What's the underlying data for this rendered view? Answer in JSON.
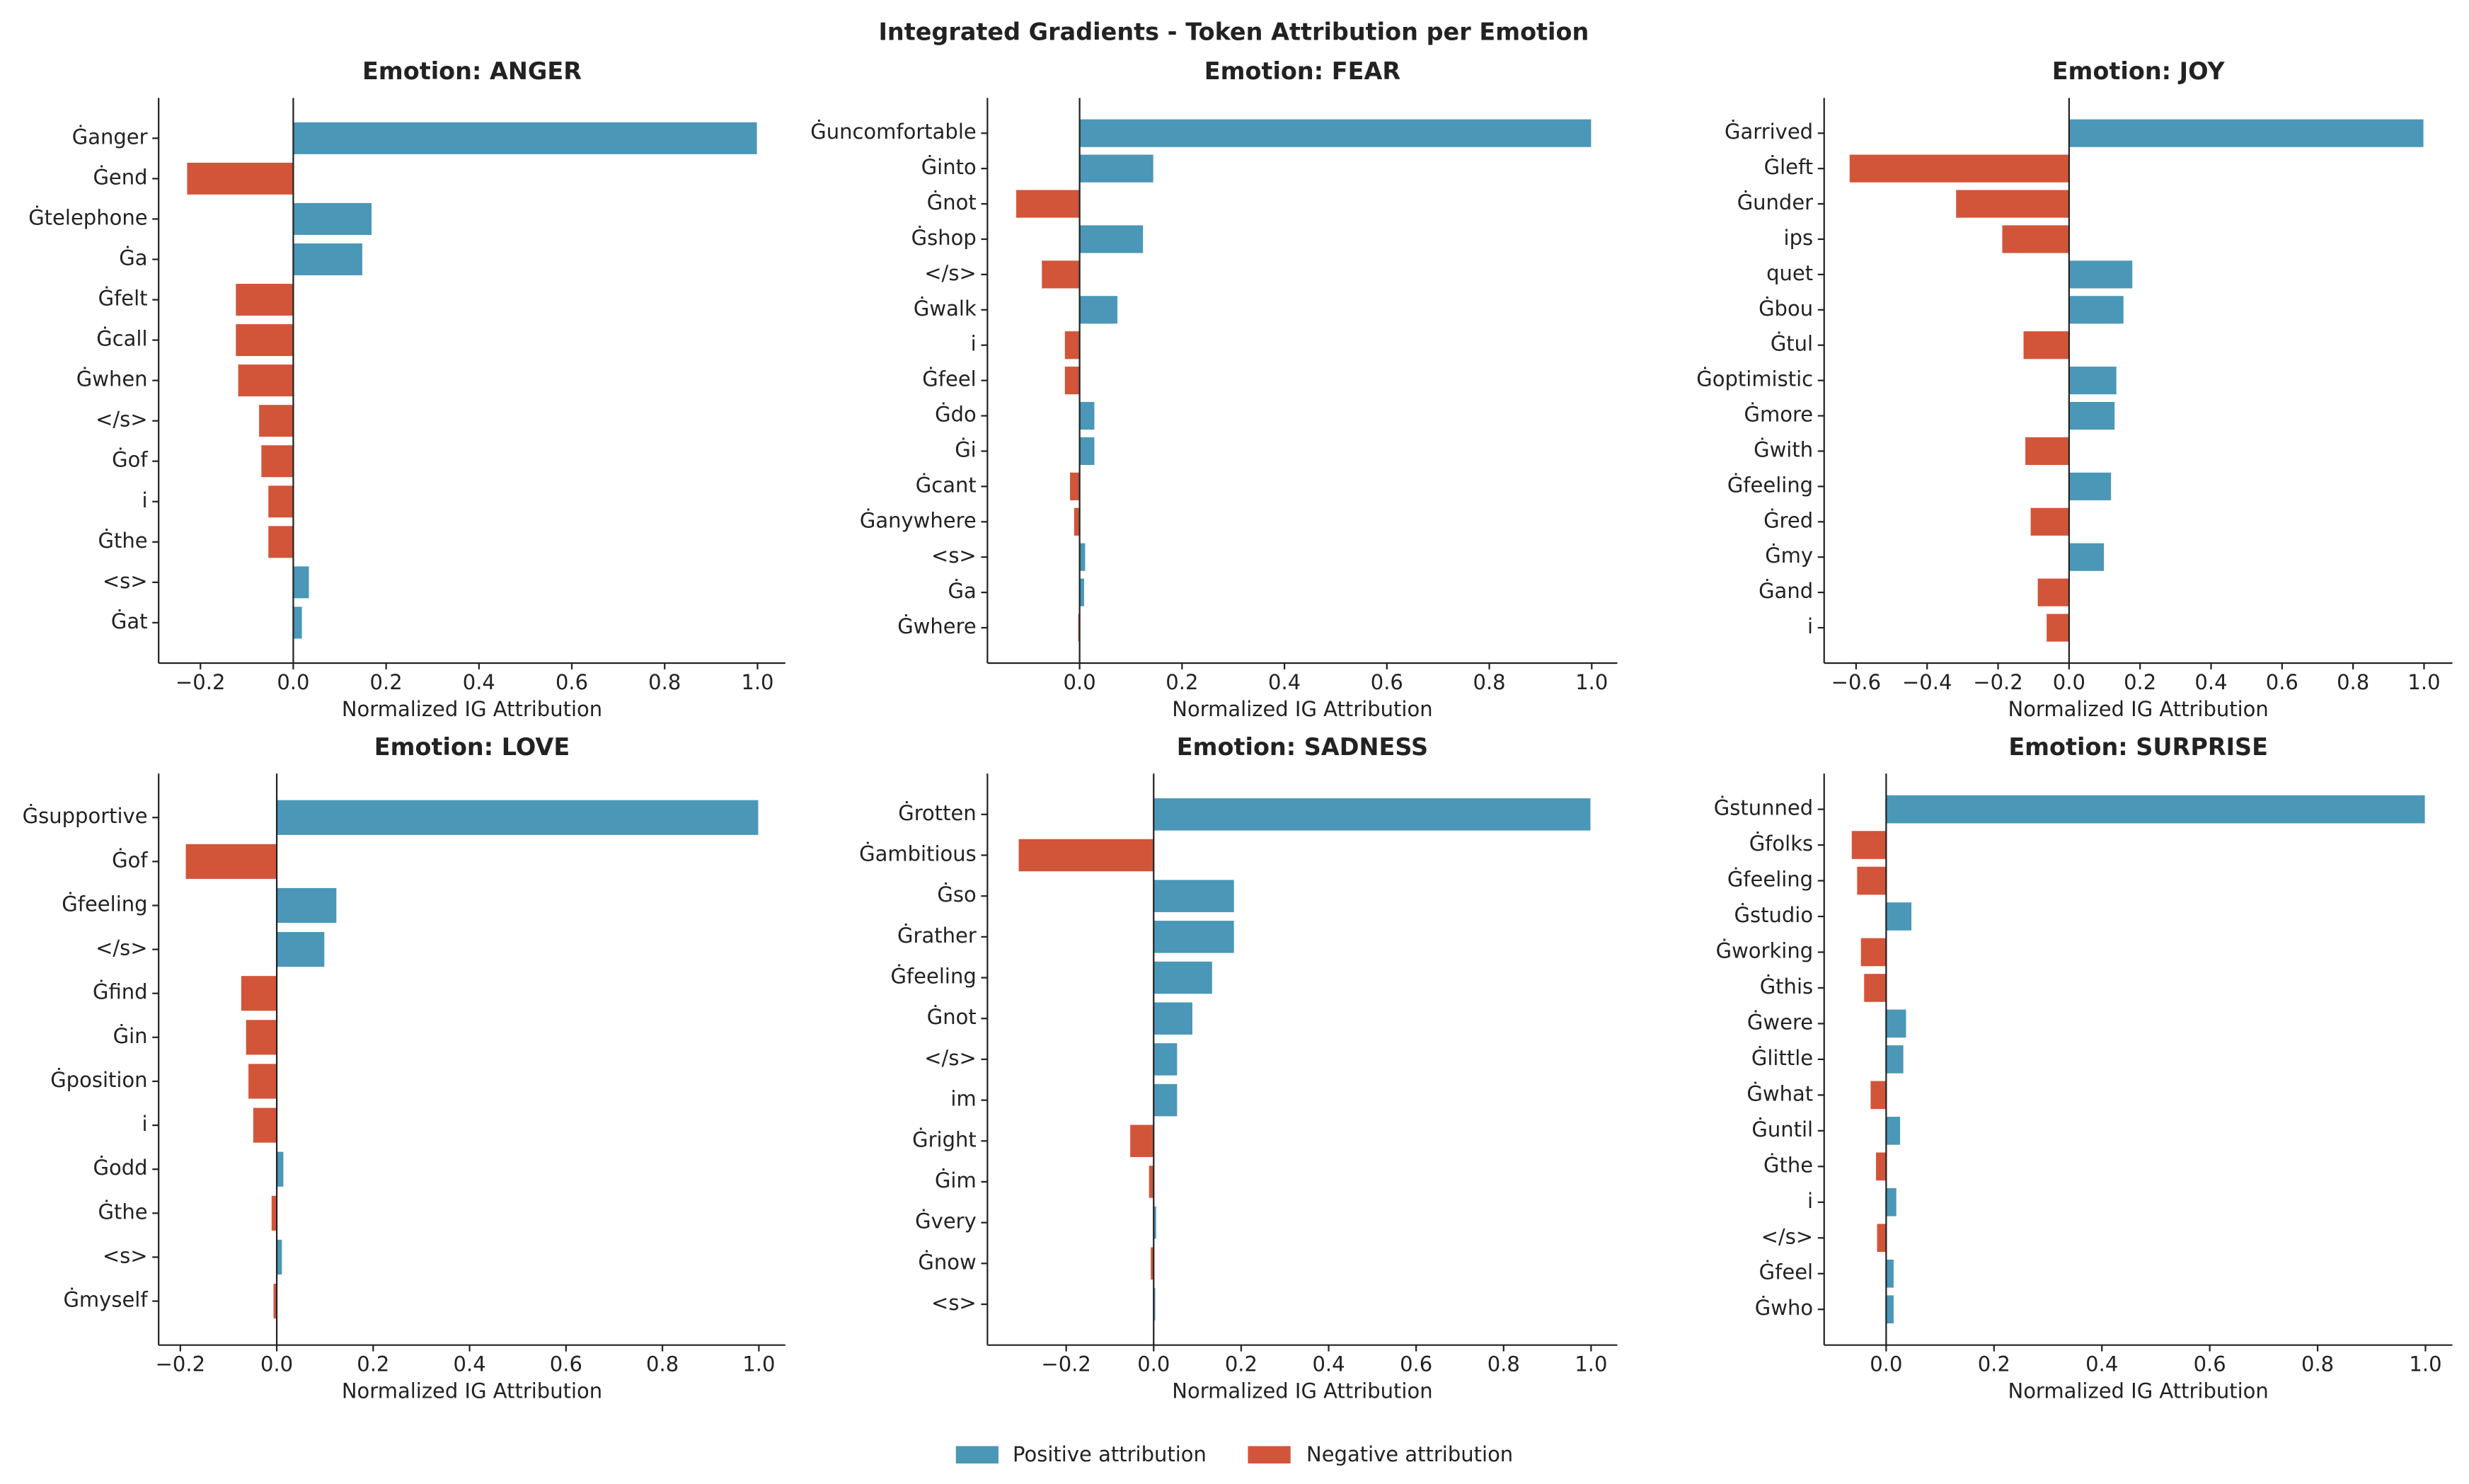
{
  "title": "Integrated Gradients - Token Attribution per Emotion",
  "legend": [
    {
      "name": "Positive attribution",
      "color": "#4a97b8"
    },
    {
      "name": "Negative attribution",
      "color": "#d2553a"
    }
  ],
  "chart_data": [
    {
      "type": "barh",
      "title": "Emotion: ANGER",
      "xlabel": "Normalized IG Attribution",
      "categories": [
        "Ġanger",
        "Ġend",
        "Ġtelephone",
        "Ġa",
        "Ġfelt",
        "Ġcall",
        "Ġwhen",
        "</s>",
        "Ġof",
        "i",
        "Ġthe",
        "<s>",
        "Ġat"
      ],
      "values": [
        1.0,
        -0.23,
        0.17,
        0.15,
        -0.125,
        -0.125,
        -0.12,
        -0.075,
        -0.07,
        -0.055,
        -0.055,
        0.035,
        0.02
      ],
      "xlim": [
        -0.29,
        1.06
      ],
      "xticks": [
        {
          "value": -0.2,
          "label": "−0.2"
        },
        {
          "value": 0,
          "label": "0.0"
        },
        0.2,
        0.4,
        0.6,
        0.8,
        {
          "value": 1,
          "label": "1.0"
        }
      ]
    },
    {
      "type": "barh",
      "title": "Emotion: FEAR",
      "xlabel": "Normalized IG Attribution",
      "categories": [
        "Ġuncomfortable",
        "Ġinto",
        "Ġnot",
        "Ġshop",
        "</s>",
        "Ġwalk",
        "i",
        "Ġfeel",
        "Ġdo",
        "Ġi",
        "Ġcant",
        "Ġanywhere",
        "<s>",
        "Ġa",
        "Ġwhere"
      ],
      "values": [
        1.0,
        0.145,
        -0.125,
        0.125,
        -0.075,
        0.075,
        -0.03,
        -0.03,
        0.03,
        0.03,
        -0.02,
        -0.012,
        0.012,
        0.01,
        -0.004
      ],
      "xlim": [
        -0.18,
        1.05
      ],
      "xticks": [
        {
          "value": 0,
          "label": "0.0"
        },
        0.2,
        0.4,
        0.6,
        0.8,
        {
          "value": 1,
          "label": "1.0"
        }
      ]
    },
    {
      "type": "barh",
      "title": "Emotion: JOY",
      "xlabel": "Normalized IG Attribution",
      "categories": [
        "Ġarrived",
        "Ġleft",
        "Ġunder",
        "ips",
        "quet",
        "Ġbou",
        "Ġtul",
        "Ġoptimistic",
        "Ġmore",
        "Ġwith",
        "Ġfeeling",
        "Ġred",
        "Ġmy",
        "Ġand",
        "i"
      ],
      "values": [
        1.0,
        -0.62,
        -0.32,
        -0.19,
        0.18,
        0.155,
        -0.13,
        0.135,
        0.13,
        -0.125,
        0.12,
        -0.11,
        0.1,
        -0.09,
        -0.065
      ],
      "xlim": [
        -0.69,
        1.08
      ],
      "xticks": [
        {
          "value": -0.6,
          "label": "−0.6"
        },
        {
          "value": -0.4,
          "label": "−0.4"
        },
        {
          "value": -0.2,
          "label": "−0.2"
        },
        {
          "value": 0,
          "label": "0.0"
        },
        0.2,
        0.4,
        0.6,
        0.8,
        {
          "value": 1,
          "label": "1.0"
        }
      ]
    },
    {
      "type": "barh",
      "title": "Emotion: LOVE",
      "xlabel": "Normalized IG Attribution",
      "categories": [
        "Ġsupportive",
        "Ġof",
        "Ġfeeling",
        "</s>",
        "Ġfind",
        "Ġin",
        "Ġposition",
        "i",
        "Ġodd",
        "Ġthe",
        "<s>",
        "Ġmyself"
      ],
      "values": [
        1.0,
        -0.19,
        0.125,
        0.1,
        -0.075,
        -0.065,
        -0.06,
        -0.05,
        0.015,
        -0.012,
        0.012,
        -0.008
      ],
      "xlim": [
        -0.245,
        1.055
      ],
      "xticks": [
        {
          "value": -0.2,
          "label": "−0.2"
        },
        {
          "value": 0,
          "label": "0.0"
        },
        0.2,
        0.4,
        0.6,
        0.8,
        {
          "value": 1,
          "label": "1.0"
        }
      ]
    },
    {
      "type": "barh",
      "title": "Emotion: SADNESS",
      "xlabel": "Normalized IG Attribution",
      "categories": [
        "Ġrotten",
        "Ġambitious",
        "Ġso",
        "Ġrather",
        "Ġfeeling",
        "Ġnot",
        "</s>",
        "im",
        "Ġright",
        "Ġim",
        "Ġvery",
        "Ġnow",
        "<s>"
      ],
      "values": [
        1.0,
        -0.31,
        0.185,
        0.185,
        0.135,
        0.09,
        0.055,
        0.055,
        -0.055,
        -0.012,
        0.007,
        -0.008,
        0.005
      ],
      "xlim": [
        -0.38,
        1.06
      ],
      "xticks": [
        {
          "value": -0.2,
          "label": "−0.2"
        },
        {
          "value": 0,
          "label": "0.0"
        },
        0.2,
        0.4,
        0.6,
        0.8,
        {
          "value": 1,
          "label": "1.0"
        }
      ]
    },
    {
      "type": "barh",
      "title": "Emotion: SURPRISE",
      "xlabel": "Normalized IG Attribution",
      "categories": [
        "Ġstunned",
        "Ġfolks",
        "Ġfeeling",
        "Ġstudio",
        "Ġworking",
        "Ġthis",
        "Ġwere",
        "Ġlittle",
        "Ġwhat",
        "Ġuntil",
        "Ġthe",
        "i",
        "</s>",
        "Ġfeel",
        "Ġwho"
      ],
      "values": [
        1.0,
        -0.065,
        -0.055,
        0.048,
        -0.048,
        -0.042,
        0.038,
        0.033,
        -0.03,
        0.027,
        -0.02,
        0.02,
        -0.018,
        0.015,
        0.015
      ],
      "xlim": [
        -0.115,
        1.05
      ],
      "xticks": [
        {
          "value": 0,
          "label": "0.0"
        },
        0.2,
        0.4,
        0.6,
        0.8,
        {
          "value": 1,
          "label": "1.0"
        }
      ]
    }
  ]
}
